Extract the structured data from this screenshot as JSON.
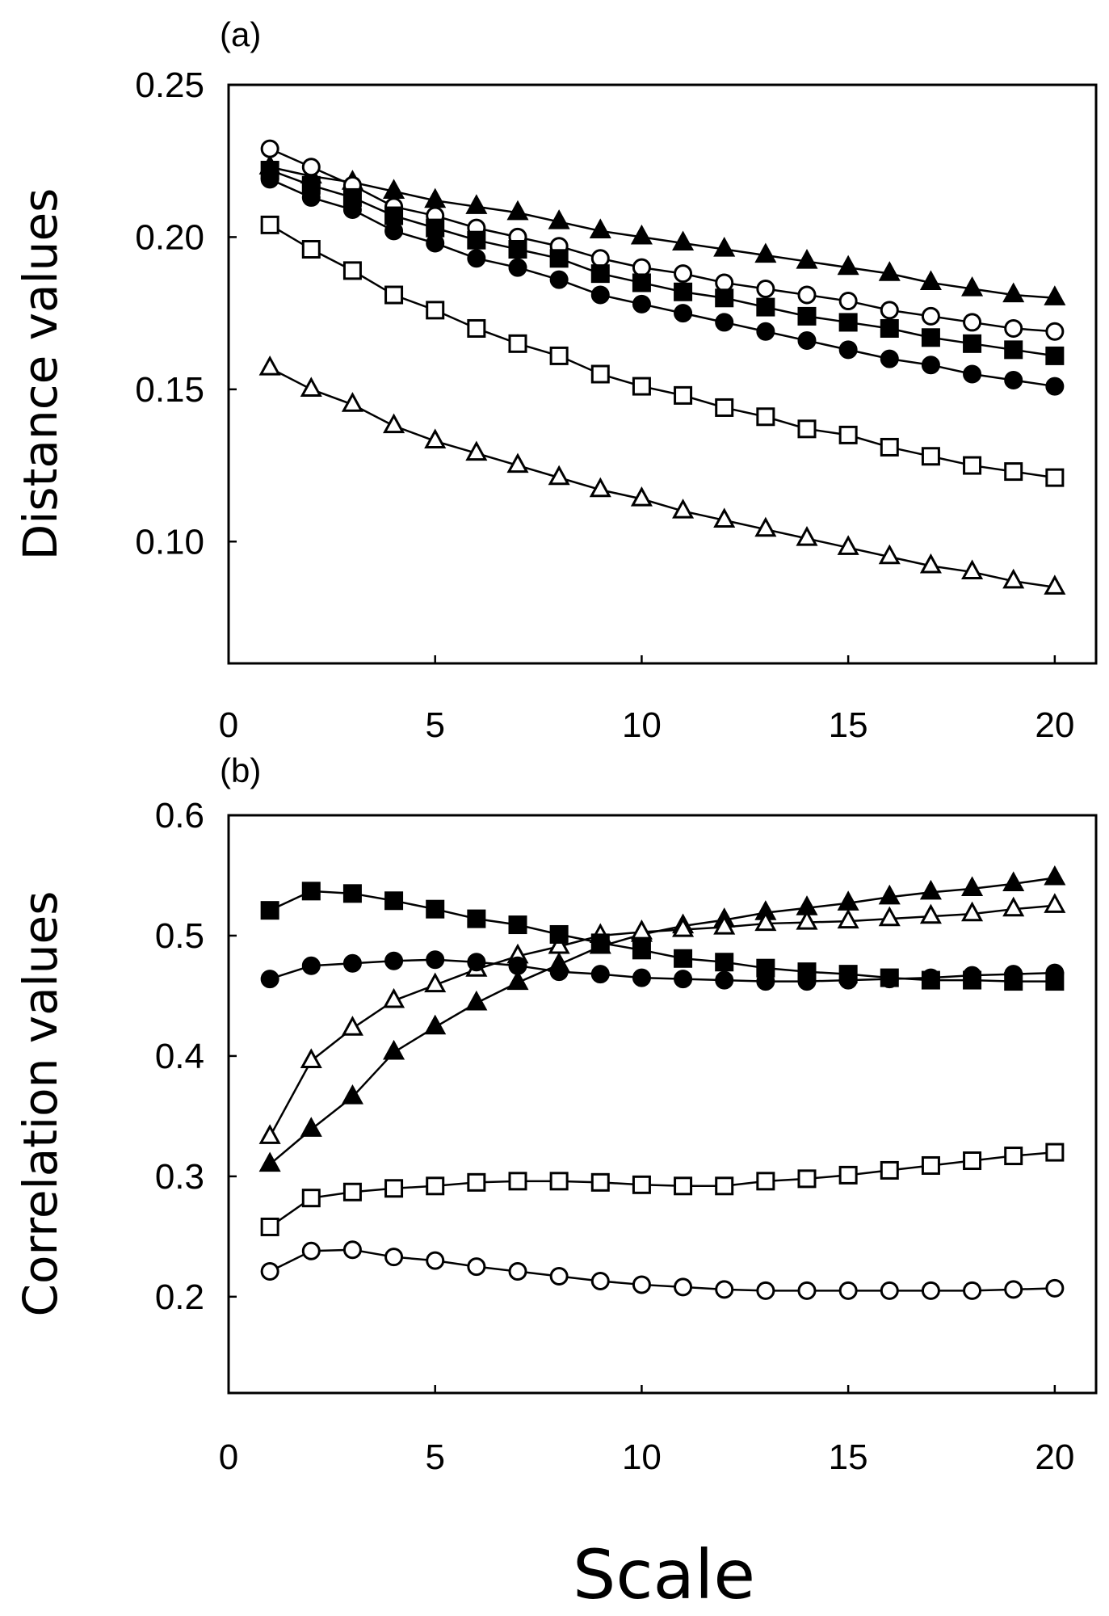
{
  "figure": {
    "xlabel": "Scale"
  },
  "chart_data": [
    {
      "type": "line",
      "panel_label": "(a)",
      "title": "",
      "xlabel": "Scale",
      "ylabel": "Distance values",
      "xlim": [
        0,
        21
      ],
      "ylim": [
        0.06,
        0.25
      ],
      "xticks": [
        0,
        5,
        10,
        15,
        20
      ],
      "xtick_labels": [
        "0",
        "5",
        "10",
        "15",
        "20"
      ],
      "yticks": [
        0.1,
        0.15,
        0.2,
        0.25
      ],
      "ytick_labels": [
        "0.10",
        "0.15",
        "0.20",
        "0.25"
      ],
      "grid": false,
      "legend": "none",
      "x": [
        1,
        2,
        3,
        4,
        5,
        6,
        7,
        8,
        9,
        10,
        11,
        12,
        13,
        14,
        15,
        16,
        17,
        18,
        19,
        20
      ],
      "series": [
        {
          "name": "filled-triangle",
          "marker": "triangle",
          "filled": true,
          "values": [
            0.223,
            0.22,
            0.218,
            0.215,
            0.212,
            0.21,
            0.208,
            0.205,
            0.202,
            0.2,
            0.198,
            0.196,
            0.194,
            0.192,
            0.19,
            0.188,
            0.185,
            0.183,
            0.181,
            0.18
          ]
        },
        {
          "name": "open-circle",
          "marker": "circle",
          "filled": false,
          "values": [
            0.229,
            0.223,
            0.217,
            0.21,
            0.207,
            0.203,
            0.2,
            0.197,
            0.193,
            0.19,
            0.188,
            0.185,
            0.183,
            0.181,
            0.179,
            0.176,
            0.174,
            0.172,
            0.17,
            0.169
          ]
        },
        {
          "name": "filled-square",
          "marker": "square",
          "filled": true,
          "values": [
            0.222,
            0.217,
            0.213,
            0.207,
            0.203,
            0.199,
            0.196,
            0.193,
            0.188,
            0.185,
            0.182,
            0.18,
            0.177,
            0.174,
            0.172,
            0.17,
            0.167,
            0.165,
            0.163,
            0.161
          ]
        },
        {
          "name": "filled-circle",
          "marker": "circle",
          "filled": true,
          "values": [
            0.219,
            0.213,
            0.209,
            0.202,
            0.198,
            0.193,
            0.19,
            0.186,
            0.181,
            0.178,
            0.175,
            0.172,
            0.169,
            0.166,
            0.163,
            0.16,
            0.158,
            0.155,
            0.153,
            0.151
          ]
        },
        {
          "name": "open-square",
          "marker": "square",
          "filled": false,
          "values": [
            0.204,
            0.196,
            0.189,
            0.181,
            0.176,
            0.17,
            0.165,
            0.161,
            0.155,
            0.151,
            0.148,
            0.144,
            0.141,
            0.137,
            0.135,
            0.131,
            0.128,
            0.125,
            0.123,
            0.121
          ]
        },
        {
          "name": "open-triangle",
          "marker": "triangle",
          "filled": false,
          "values": [
            0.157,
            0.15,
            0.145,
            0.138,
            0.133,
            0.129,
            0.125,
            0.121,
            0.117,
            0.114,
            0.11,
            0.107,
            0.104,
            0.101,
            0.098,
            0.095,
            0.092,
            0.09,
            0.087,
            0.085
          ]
        }
      ]
    },
    {
      "type": "line",
      "panel_label": "(b)",
      "title": "",
      "xlabel": "Scale",
      "ylabel": "Correlation values",
      "xlim": [
        0,
        21
      ],
      "ylim": [
        0.12,
        0.6
      ],
      "xticks": [
        0,
        5,
        10,
        15,
        20
      ],
      "xtick_labels": [
        "0",
        "5",
        "10",
        "15",
        "20"
      ],
      "yticks": [
        0.2,
        0.3,
        0.4,
        0.5,
        0.6
      ],
      "ytick_labels": [
        "0.2",
        "0.3",
        "0.4",
        "0.5",
        "0.6"
      ],
      "grid": false,
      "legend": "none",
      "x": [
        1,
        2,
        3,
        4,
        5,
        6,
        7,
        8,
        9,
        10,
        11,
        12,
        13,
        14,
        15,
        16,
        17,
        18,
        19,
        20
      ],
      "series": [
        {
          "name": "filled-triangle",
          "marker": "triangle",
          "filled": true,
          "values": [
            0.31,
            0.339,
            0.366,
            0.403,
            0.424,
            0.444,
            0.461,
            0.476,
            0.491,
            0.501,
            0.508,
            0.513,
            0.519,
            0.523,
            0.527,
            0.532,
            0.536,
            0.539,
            0.543,
            0.548
          ]
        },
        {
          "name": "open-triangle",
          "marker": "triangle",
          "filled": false,
          "values": [
            0.333,
            0.396,
            0.423,
            0.446,
            0.459,
            0.472,
            0.483,
            0.491,
            0.5,
            0.503,
            0.505,
            0.507,
            0.51,
            0.511,
            0.512,
            0.514,
            0.516,
            0.518,
            0.522,
            0.525
          ]
        },
        {
          "name": "filled-square",
          "marker": "square",
          "filled": true,
          "values": [
            0.521,
            0.537,
            0.535,
            0.529,
            0.522,
            0.514,
            0.509,
            0.501,
            0.494,
            0.488,
            0.481,
            0.478,
            0.473,
            0.47,
            0.468,
            0.465,
            0.463,
            0.463,
            0.462,
            0.462
          ]
        },
        {
          "name": "filled-circle",
          "marker": "circle",
          "filled": true,
          "values": [
            0.464,
            0.475,
            0.477,
            0.479,
            0.48,
            0.478,
            0.475,
            0.47,
            0.468,
            0.465,
            0.464,
            0.463,
            0.462,
            0.462,
            0.463,
            0.464,
            0.465,
            0.467,
            0.468,
            0.469
          ]
        },
        {
          "name": "open-square",
          "marker": "square",
          "filled": false,
          "values": [
            0.258,
            0.282,
            0.287,
            0.29,
            0.292,
            0.295,
            0.296,
            0.296,
            0.295,
            0.293,
            0.292,
            0.292,
            0.296,
            0.298,
            0.301,
            0.305,
            0.309,
            0.313,
            0.317,
            0.32
          ]
        },
        {
          "name": "open-circle",
          "marker": "circle",
          "filled": false,
          "values": [
            0.221,
            0.238,
            0.239,
            0.233,
            0.23,
            0.225,
            0.221,
            0.217,
            0.213,
            0.21,
            0.208,
            0.206,
            0.205,
            0.205,
            0.205,
            0.205,
            0.205,
            0.205,
            0.206,
            0.207
          ]
        }
      ]
    }
  ]
}
